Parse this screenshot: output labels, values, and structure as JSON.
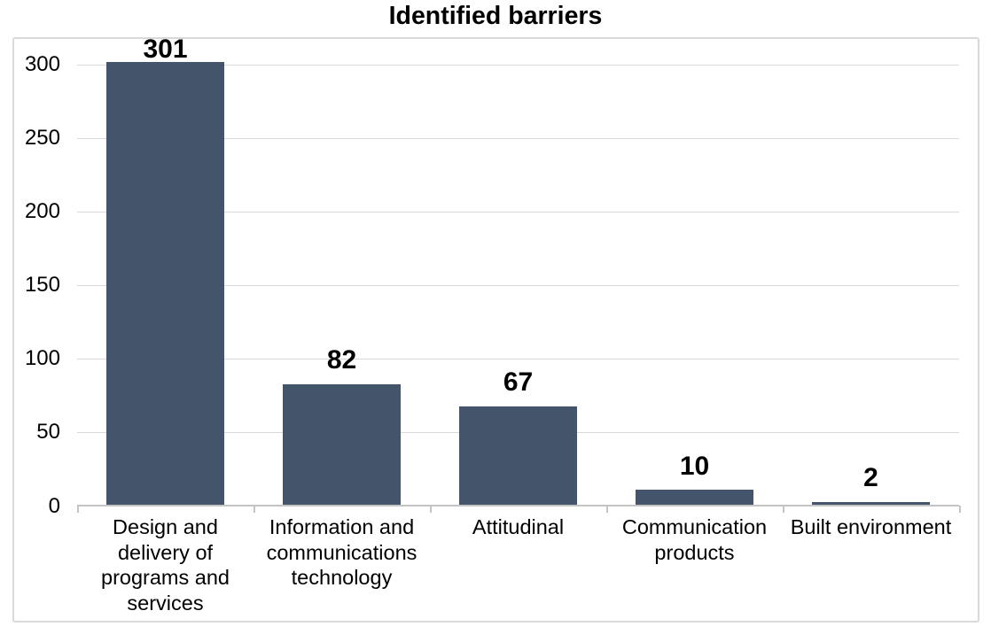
{
  "page": {
    "background": "#FFFFFF"
  },
  "chart_data": {
    "type": "bar",
    "title": "Identified barriers",
    "categories": [
      "Design and delivery of programs and services",
      "Information and communications technology",
      "Attitudinal",
      "Communication products",
      "Built environment"
    ],
    "category_label_lines": [
      [
        "Design and",
        "delivery of",
        "programs and",
        "services"
      ],
      [
        "Information and",
        "communications",
        "technology"
      ],
      [
        "Attitudinal"
      ],
      [
        "Communication",
        "products"
      ],
      [
        "Built environment"
      ]
    ],
    "values": [
      301,
      82,
      67,
      10,
      2
    ],
    "data_labels": [
      "301",
      "82",
      "67",
      "10",
      "2"
    ],
    "xlabel": "",
    "ylabel": "",
    "ylim": [
      0,
      300
    ],
    "ytick_interval": 50,
    "ytick_labels": [
      "0",
      "50",
      "100",
      "150",
      "200",
      "250",
      "300"
    ],
    "grid": "horizontal",
    "legend": "none",
    "colors": {
      "bar": "#44546A",
      "gridline": "#D9D9D9",
      "axis_line": "#C4C4C4",
      "border": "#D9D9D9",
      "text": "#000000"
    }
  }
}
